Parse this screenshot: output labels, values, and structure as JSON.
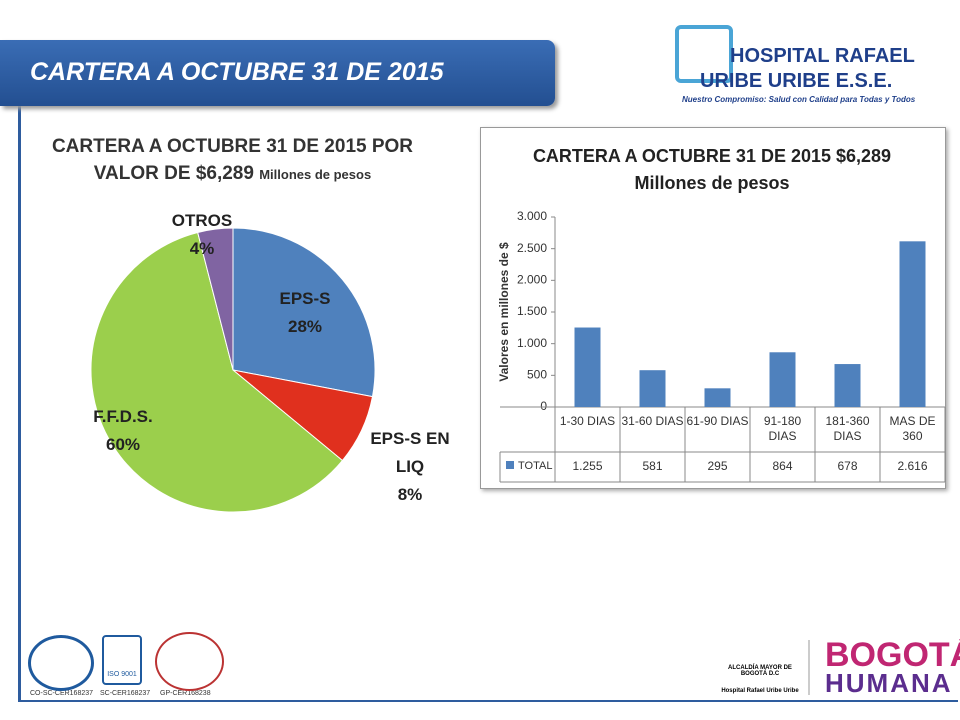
{
  "slide_title": "CARTERA A OCTUBRE 31 DE 2015",
  "logo": {
    "line1": "HOSPITAL RAFAEL",
    "line2": "URIBE URIBE E.S.E.",
    "tagline": "Nuestro Compromiso: Salud con Calidad para Todas y Todos"
  },
  "chart_data": [
    {
      "type": "pie",
      "title": "CARTERA  A OCTUBRE 31 DE 2015 POR VALOR DE $6,289",
      "subtitle": "Millones de pesos",
      "categories": [
        "EPS-S",
        "EPS-S EN LIQ",
        "F.F.D.S.",
        "OTROS"
      ],
      "values": [
        28,
        8,
        60,
        4
      ],
      "value_labels": [
        "28%",
        "8%",
        "60%",
        "4%"
      ],
      "colors": [
        "#4f81bd",
        "#e0301e",
        "#9bcf4c",
        "#8064a2"
      ]
    },
    {
      "type": "bar",
      "title": "CARTERA  A OCTUBRE 31 DE 2015  $6,289",
      "subtitle": "Millones de pesos",
      "y_label": "Valores en millones de $",
      "categories": [
        "1-30 DIAS",
        "31-60 DIAS",
        "61-90 DIAS",
        "91-180 DIAS",
        "181-360 DIAS",
        "MAS DE 360"
      ],
      "series": [
        {
          "name": "TOTAL",
          "color": "#4f81bd",
          "values": [
            1255,
            581,
            295,
            864,
            678,
            2616
          ],
          "value_labels": [
            "1.255",
            "581",
            "295",
            "864",
            "678",
            "2.616"
          ]
        }
      ],
      "ylim": [
        0,
        3000
      ],
      "yticks": [
        0,
        500,
        {
          "value": 1000,
          "label": "1.000"
        },
        {
          "value": 1500,
          "label": "1.500"
        },
        {
          "value": 2000,
          "label": "2.000"
        },
        {
          "value": 2500,
          "label": "2.500"
        },
        {
          "value": 3000,
          "label": "3.000"
        }
      ]
    }
  ],
  "footer": {
    "cert1": "CO-SC-CER168237",
    "cert2": "SC-CER168237",
    "cert3": "GP-CER168238",
    "iso": "ISO 9001",
    "alcaldia": "ALCALDÍA MAYOR DE BOGOTÁ D.C",
    "hospital": "Hospital Rafael Uribe Uribe",
    "bogota": "BOGOTÁ",
    "humana": "HUMANA"
  }
}
